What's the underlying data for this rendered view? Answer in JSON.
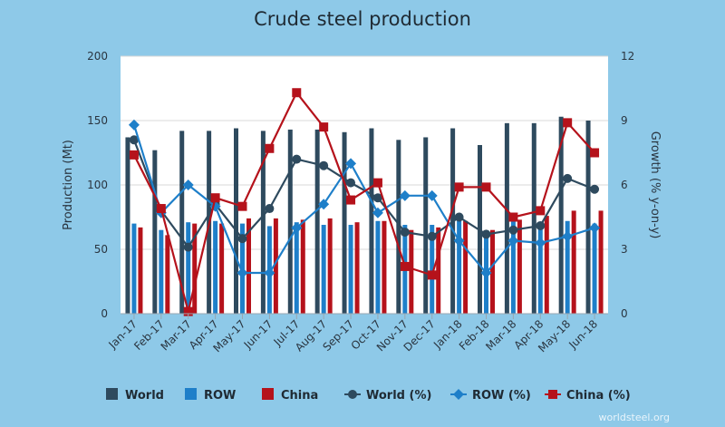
{
  "chart_data": {
    "type": "bar",
    "title": "Crude steel production",
    "ylabel": "Production (Mt)",
    "y2label": "Growth (% y-on-y)",
    "ylim": [
      0,
      200
    ],
    "y2lim": [
      0,
      12
    ],
    "yticks": [
      "0",
      "50",
      "100",
      "150",
      "200"
    ],
    "y2ticks": [
      "0",
      "3",
      "6",
      "9",
      "12"
    ],
    "categories": [
      "Jan-17",
      "Feb-17",
      "Mar-17",
      "Apr-17",
      "May-17",
      "Jun-17",
      "Jul-17",
      "Aug-17",
      "Sep-17",
      "Oct-17",
      "Nov-17",
      "Dec-17",
      "Jan-18",
      "Feb-18",
      "Mar-18",
      "Apr-18",
      "May-18",
      "Jun-18"
    ],
    "series": [
      {
        "name": "World",
        "kind": "bar",
        "axis": "left",
        "color": "#2e4a5e",
        "values": [
          137,
          127,
          142,
          142,
          144,
          142,
          143,
          143,
          141,
          144,
          135,
          137,
          144,
          131,
          148,
          148,
          153,
          150
        ]
      },
      {
        "name": "ROW",
        "kind": "bar",
        "axis": "left",
        "color": "#1e7fc9",
        "values": [
          70,
          65,
          71,
          72,
          70,
          68,
          71,
          69,
          69,
          72,
          69,
          69,
          72,
          64,
          72,
          70,
          72,
          70
        ]
      },
      {
        "name": "China",
        "kind": "bar",
        "axis": "left",
        "color": "#b5121b",
        "values": [
          67,
          61,
          70,
          70,
          74,
          74,
          73,
          74,
          71,
          72,
          65,
          67,
          72,
          65,
          73,
          76,
          80,
          80
        ]
      },
      {
        "name": "World (%)",
        "kind": "line",
        "axis": "right",
        "color": "#2e4a5e",
        "marker": "circle",
        "values": [
          8.1,
          4.8,
          3.1,
          5.1,
          3.5,
          4.9,
          7.2,
          6.9,
          6.1,
          5.4,
          3.8,
          3.6,
          4.5,
          3.7,
          3.9,
          4.1,
          6.3,
          5.8
        ]
      },
      {
        "name": "ROW (%)",
        "kind": "line",
        "axis": "right",
        "color": "#1e7fc9",
        "marker": "diamond",
        "values": [
          8.8,
          4.7,
          6.0,
          5.0,
          1.9,
          1.9,
          4.0,
          5.1,
          7.0,
          4.7,
          5.5,
          5.5,
          3.4,
          1.9,
          3.4,
          3.3,
          3.6,
          4.0
        ]
      },
      {
        "name": "China (%)",
        "kind": "line",
        "axis": "right",
        "color": "#b5121b",
        "marker": "square",
        "values": [
          7.4,
          4.9,
          0.1,
          5.4,
          5.0,
          7.7,
          10.3,
          8.7,
          5.3,
          6.1,
          2.2,
          1.8,
          5.9,
          5.9,
          4.5,
          4.8,
          8.9,
          7.5
        ]
      }
    ],
    "grid": true,
    "legend_position": "bottom"
  },
  "source_label": "worldsteel.org"
}
